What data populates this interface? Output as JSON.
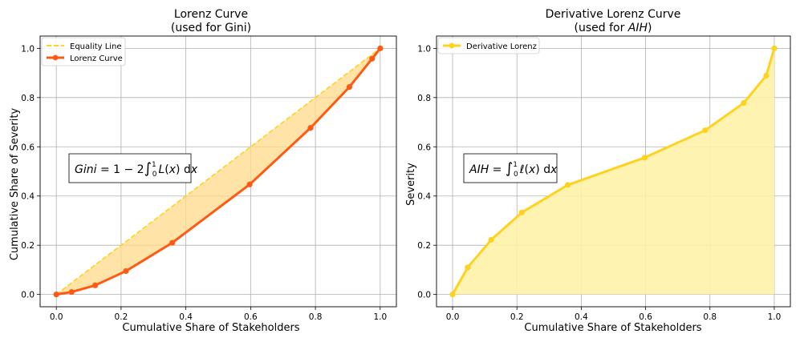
{
  "chart_data": [
    {
      "type": "line",
      "title": "Lorenz Curve",
      "subtitle": "(used for Gini)",
      "xlabel": "Cumulative Share of Stakeholders",
      "ylabel": "Cumulative Share of Severity",
      "xlim": [
        -0.05,
        1.05
      ],
      "ylim": [
        -0.05,
        1.05
      ],
      "xticks": [
        "0.0",
        "0.2",
        "0.4",
        "0.6",
        "0.8",
        "1.0"
      ],
      "yticks": [
        "0.0",
        "0.2",
        "0.4",
        "0.6",
        "0.8",
        "1.0"
      ],
      "grid": true,
      "legend_position": "top-left",
      "series": [
        {
          "name": "Equality Line",
          "style": "dashed",
          "color": "#FFD21F",
          "x": [
            0,
            1
          ],
          "y": [
            0,
            1
          ]
        },
        {
          "name": "Lorenz Curve",
          "style": "solid-markers",
          "color": "#FF5A14",
          "x": [
            0.0,
            0.047,
            0.12,
            0.215,
            0.358,
            0.597,
            0.785,
            0.905,
            0.975,
            1.0
          ],
          "y": [
            0.0,
            0.01,
            0.037,
            0.095,
            0.21,
            0.447,
            0.677,
            0.843,
            0.958,
            1.0
          ]
        }
      ],
      "fill_between": {
        "color": "#FFD98A",
        "between": [
          "Lorenz Curve",
          "Equality Line"
        ]
      },
      "annotation": {
        "text": "Gini = 1 − 2∫₀¹ L(x) dx",
        "position": "center-left"
      }
    },
    {
      "type": "area",
      "title": "Derivative Lorenz Curve",
      "subtitle": "(used for AIH)",
      "xlabel": "Cumulative Share of Stakeholders",
      "ylabel": "Severity",
      "xlim": [
        -0.05,
        1.05
      ],
      "ylim": [
        -0.05,
        1.05
      ],
      "xticks": [
        "0.0",
        "0.2",
        "0.4",
        "0.6",
        "0.8",
        "1.0"
      ],
      "yticks": [
        "0.0",
        "0.2",
        "0.4",
        "0.6",
        "0.8",
        "1.0"
      ],
      "grid": true,
      "legend_position": "top-left",
      "series": [
        {
          "name": "Derivative Lorenz",
          "style": "solid-markers",
          "color": "#FFD21F",
          "x": [
            0.0,
            0.047,
            0.12,
            0.215,
            0.358,
            0.597,
            0.785,
            0.905,
            0.975,
            1.0
          ],
          "y": [
            0.0,
            0.11,
            0.222,
            0.333,
            0.445,
            0.556,
            0.667,
            0.778,
            0.889,
            1.0
          ]
        }
      ],
      "fill_under": {
        "color": "#FFF2A8"
      },
      "annotation": {
        "text": "AIH = ∫₀¹ ℓ(x) dx",
        "position": "center-left"
      }
    }
  ]
}
